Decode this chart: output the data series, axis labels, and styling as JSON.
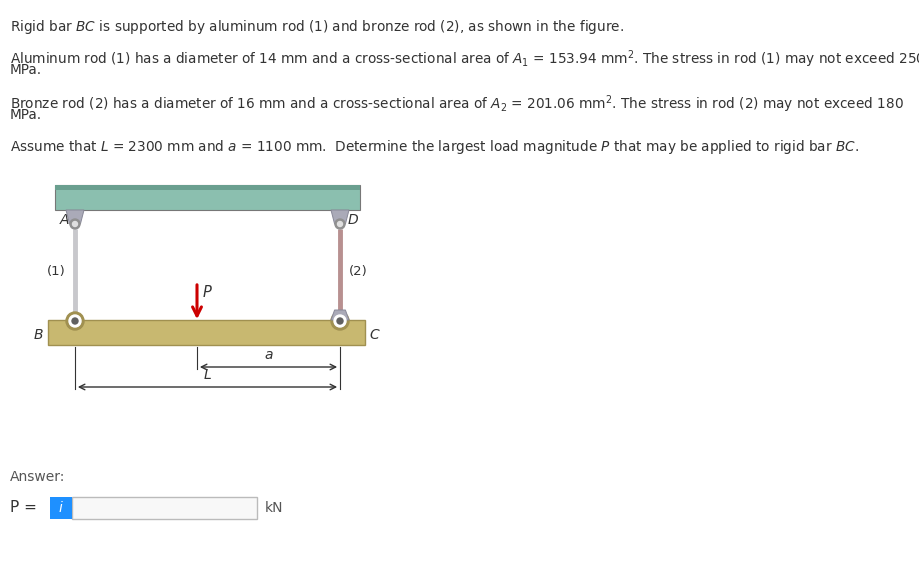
{
  "bg_color": "#ffffff",
  "wall_color": "#8bbfaf",
  "wall_top_color": "#6a9f8f",
  "bar_color": "#c8b870",
  "bar_edge_color": "#a09050",
  "rod1_color": "#c8c8cc",
  "rod2_color": "#b89090",
  "bracket_color": "#aaaaB8",
  "bracket_edge": "#888898",
  "pin_outer": "#909090",
  "pin_inner": "#e0e0e0",
  "arrow_color": "#cc0000",
  "dim_color": "#333333",
  "text_color": "#333333",
  "answer_color": "#555555",
  "info_btn_color": "#1e90ff",
  "input_bg": "#f8f8f8",
  "input_edge": "#bbbbbb",
  "line1": "Rigid bar $\\it{BC}$ is supported by aluminum rod (1) and bronze rod (2), as shown in the figure.",
  "line2a": "Aluminum rod (1) has a diameter of 14 mm and a cross-sectional area of $A_1$ = 153.94 mm$^2$. The stress in rod (1) may not exceed 250",
  "line2b": "MPa.",
  "line3a": "Bronze rod (2) has a diameter of 16 mm and a cross-sectional area of $A_2$ = 201.06 mm$^2$. The stress in rod (2) may not exceed 180",
  "line3b": "MPa.",
  "line4": "Assume that $\\it{L}$ = 2300 mm and $\\it{a}$ = 1100 mm.  Determine the largest load magnitude $\\it{P}$ that may be applied to rigid bar $\\it{BC}$."
}
